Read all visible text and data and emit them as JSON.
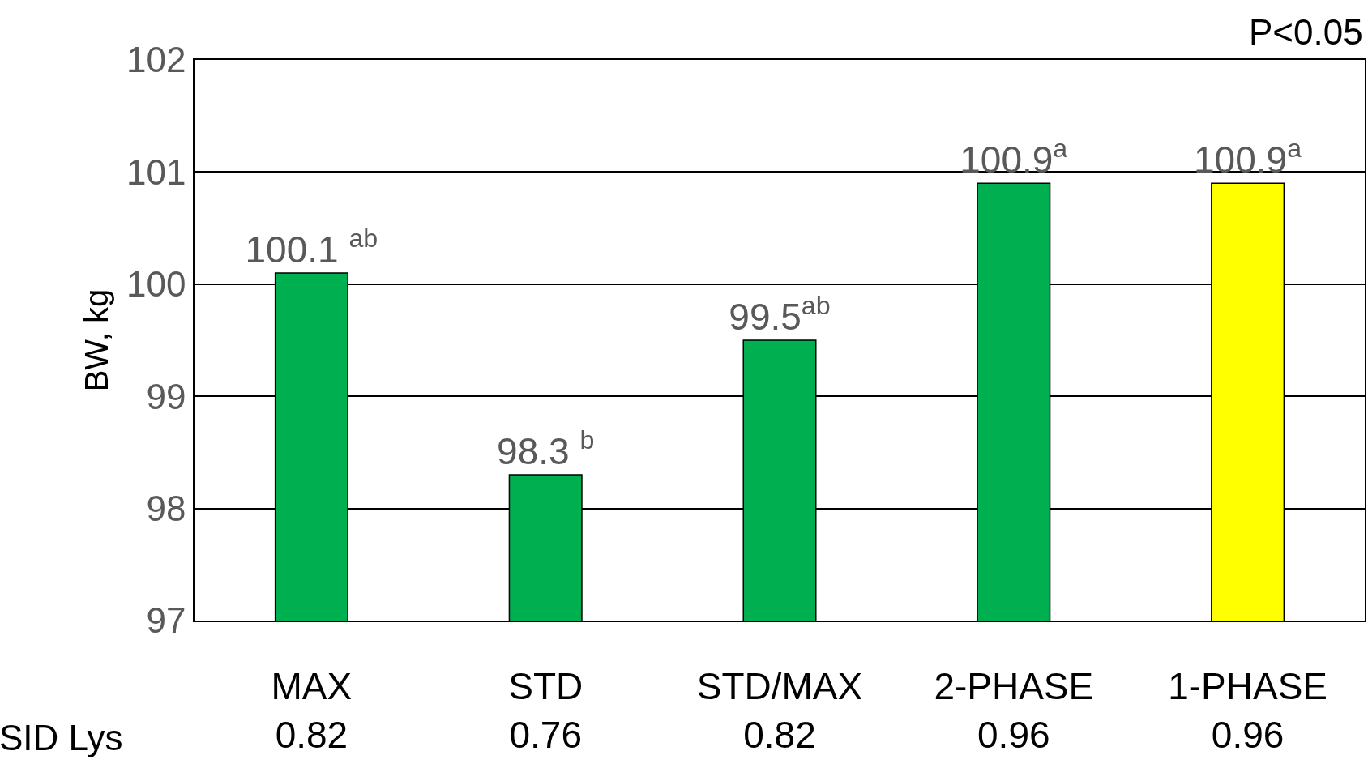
{
  "chart_data": {
    "type": "bar",
    "ylabel": "BW, kg",
    "categories": [
      "MAX\n0.82",
      "STD\n0.76",
      "STD/MAX\n0.82",
      "2-PHASE\n0.96",
      "1-PHASE\n0.96"
    ],
    "values": [
      100.1,
      98.3,
      99.5,
      100.9,
      100.9
    ],
    "colors": [
      "#00b050",
      "#00b050",
      "#00b050",
      "#00b050",
      "#ffff00"
    ],
    "value_labels": [
      "100.1 $^{ab}$",
      "98.3 $^{b}$",
      "99.5$^{ab}$",
      "100.9$^{a}$",
      "100.9$^{a}$"
    ],
    "ylim": [
      97,
      102
    ],
    "yticks": [
      97,
      98,
      99,
      100,
      101,
      102
    ],
    "grid": "y",
    "legend": false,
    "annotations": [
      "P<0.05",
      "SID Lys"
    ]
  }
}
